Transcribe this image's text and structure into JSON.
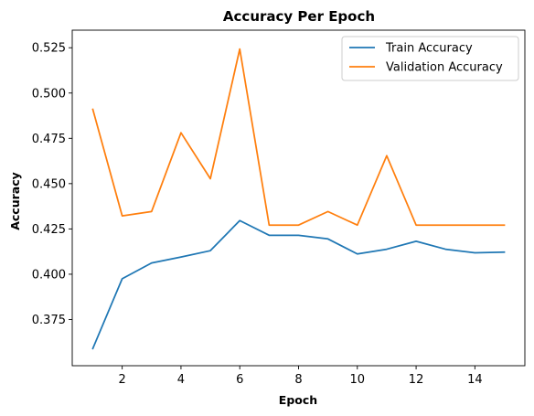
{
  "chart_data": {
    "type": "line",
    "title": "Accuracy Per Epoch",
    "xlabel": "Epoch",
    "ylabel": "Accuracy",
    "x": [
      1,
      2,
      3,
      4,
      5,
      6,
      7,
      8,
      9,
      10,
      11,
      12,
      13,
      14,
      15
    ],
    "xlim": [
      0.3,
      15.7
    ],
    "ylim": [
      0.3495,
      0.5347
    ],
    "xticks": [
      2,
      4,
      6,
      8,
      10,
      12,
      14
    ],
    "xtick_labels": [
      "2",
      "4",
      "6",
      "8",
      "10",
      "12",
      "14"
    ],
    "yticks": [
      0.375,
      0.4,
      0.425,
      0.45,
      0.475,
      0.5,
      0.525
    ],
    "ytick_labels": [
      "0.375",
      "0.400",
      "0.425",
      "0.450",
      "0.475",
      "0.500",
      "0.525"
    ],
    "grid": false,
    "legend_position": "top-right",
    "series": [
      {
        "name": "Train Accuracy",
        "color": "#1f77b4",
        "values": [
          0.359,
          0.3975,
          0.4062,
          0.4095,
          0.413,
          0.4296,
          0.4215,
          0.4215,
          0.4195,
          0.4112,
          0.4138,
          0.4182,
          0.4138,
          0.4118,
          0.4122
        ]
      },
      {
        "name": "Validation Accuracy",
        "color": "#ff7f0e",
        "values": [
          0.491,
          0.4322,
          0.4346,
          0.4781,
          0.4527,
          0.5243,
          0.4271,
          0.4271,
          0.4346,
          0.4271,
          0.4654,
          0.4271,
          0.4271,
          0.4271,
          0.4271
        ]
      }
    ]
  }
}
